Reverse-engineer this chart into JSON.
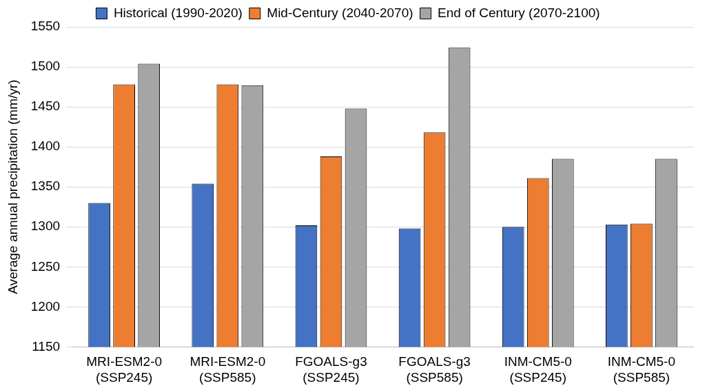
{
  "chart_data": {
    "type": "bar",
    "ylabel": "Average annual precipitation (mm/yr)",
    "categories": [
      "MRI-ESM2-0\n(SSP245)",
      "MRI-ESM2-0\n(SSP585)",
      "FGOALS-g3\n(SSP245)",
      "FGOALS-g3\n(SSP585)",
      "INM-CM5-0\n(SSP245)",
      "INM-CM5-0\n(SSP585)"
    ],
    "series": [
      {
        "name": "Historical (1990-2020)",
        "color": "#4472c4",
        "values": [
          1330,
          1354,
          1302,
          1298,
          1300,
          1303
        ]
      },
      {
        "name": "Mid-Century (2040-2070)",
        "color": "#ed7d31",
        "values": [
          1478,
          1478,
          1388,
          1418,
          1361,
          1304
        ]
      },
      {
        "name": "End of Century (2070-2100)",
        "color": "#a5a5a5",
        "values": [
          1504,
          1477,
          1448,
          1524,
          1385,
          1385
        ]
      }
    ],
    "ylim": [
      1150,
      1550
    ],
    "yticks": [
      1150,
      1200,
      1250,
      1300,
      1350,
      1400,
      1450,
      1500,
      1550
    ],
    "grid": "y",
    "legend": "top"
  }
}
